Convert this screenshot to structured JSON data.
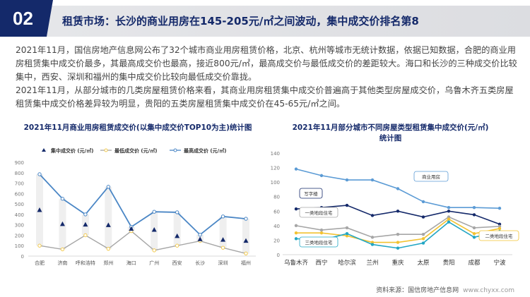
{
  "header": {
    "number": "02",
    "title": "租赁市场：长沙的商业用房在145-205元/㎡之间波动，集中成交价排名第8"
  },
  "paragraphs": [
    "2021年11月，国信房地产信息网公布了32个城市商业用房租赁价格，北京、杭州等城市无统计数据，依据已知数据，合肥的商业用房租赁集中成交价最多，其最高成交价也最高，接近800元/㎡，最高成交价与最低成交价的差距较大。海口和长沙的三种成交价比较集中，西安、深圳和福州的集中成交价比较向最低成交价靠拢。",
    "2021年11月，从部分城市的几类房屋租赁价格来看，其商业用房租赁集中成交价普遍高于其他类型房屋成交价，乌鲁木齐五类房屋租赁集中成交价格差异较为明显，贵阳的五类房屋租赁集中成交价在45-65元/㎡之间。"
  ],
  "source": {
    "label": "资料来源：国信房地产信息网",
    "url": "www.chyxx.com"
  },
  "chart_data": [
    {
      "type": "line",
      "title": "2021年11月商业用房租赁成交价(以集中成交价TOP10为主)统计图",
      "categories": [
        "合肥",
        "济南",
        "呼和浩特",
        "郑州",
        "海口",
        "广州",
        "西安",
        "长沙",
        "深圳",
        "福州"
      ],
      "ylim": [
        0,
        900
      ],
      "yticks": [
        0,
        100,
        200,
        300,
        400,
        500,
        600,
        700,
        800,
        900
      ],
      "legend": "top",
      "series": [
        {
          "name": "集中成交价 (元/㎡)",
          "marker": "triangle",
          "color": "#14296a",
          "values": [
            440,
            305,
            300,
            295,
            260,
            250,
            190,
            160,
            155,
            145
          ]
        },
        {
          "name": "最低成交价 (元/㎡)",
          "color": "#a6a6a6",
          "marker_color": "#f2c94c",
          "values": [
            100,
            65,
            200,
            70,
            240,
            55,
            100,
            145,
            80,
            25
          ]
        },
        {
          "name": "最高成交价 (元/㎡)",
          "color": "#4a86c5",
          "values": [
            785,
            550,
            400,
            665,
            280,
            425,
            420,
            205,
            380,
            358
          ]
        }
      ]
    },
    {
      "type": "line",
      "title": "2021年11月部分城市不同房屋类型租赁集中成交价(元/㎡)统计图",
      "categories": [
        "乌鲁木齐",
        "西宁",
        "哈尔滨",
        "兰州",
        "重庆",
        "太原",
        "贵阳",
        "成都",
        "宁波"
      ],
      "ylim": [
        0,
        140
      ],
      "yticks": [
        0,
        20,
        40,
        60,
        80,
        100,
        120,
        140
      ],
      "series": [
        {
          "name": "商业用房",
          "color": "#5b9bd5",
          "values": [
            118,
            109,
            103,
            103,
            91,
            73,
            65,
            65,
            64
          ]
        },
        {
          "name": "写字楼",
          "color": "#14296a",
          "values": [
            63,
            65,
            68,
            54,
            60,
            52,
            60,
            55,
            42
          ]
        },
        {
          "name": "一类地段住宅",
          "color": "#a6a6a6",
          "values": [
            40,
            34,
            37,
            24,
            28,
            28,
            52,
            37,
            39
          ]
        },
        {
          "name": "二类地段住宅",
          "color": "#f2c230",
          "values": [
            30,
            30,
            26,
            17,
            17,
            22,
            49,
            29,
            36
          ]
        },
        {
          "name": "三类地段住宅",
          "color": "#22a6c4",
          "values": [
            22,
            20,
            29,
            14,
            9,
            16,
            45,
            24,
            32
          ]
        }
      ]
    }
  ]
}
